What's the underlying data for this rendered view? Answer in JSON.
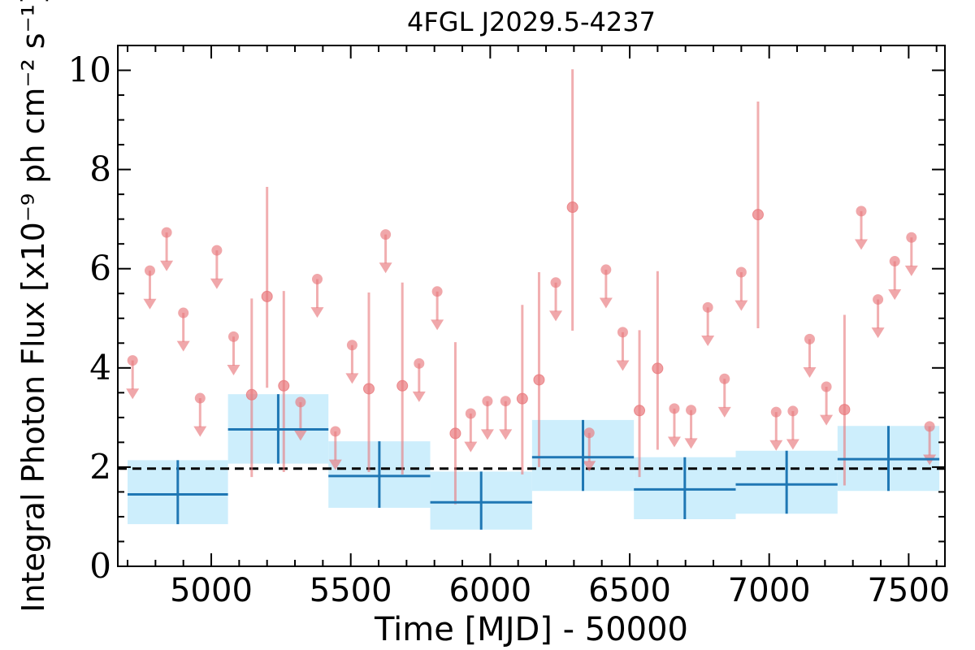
{
  "chart_data": {
    "type": "scatter",
    "title": "4FGL J2029.5-4237",
    "xlabel": "Time [MJD] - 50000",
    "ylabel": "Integral Photon Flux [x10⁻⁹ ph cm⁻² s⁻¹]",
    "xlim": [
      4665,
      7630
    ],
    "ylim": [
      0,
      10.5
    ],
    "x_ticks": [
      5000,
      5500,
      6000,
      6500,
      7000,
      7500
    ],
    "y_ticks": [
      0,
      2,
      4,
      6,
      8,
      10
    ],
    "x_minor_step": 100,
    "y_minor_step": 0.5,
    "mean_flux": 1.97,
    "colors": {
      "fine": "#e8787c",
      "coarse_line": "#1f77b4",
      "coarse_box": "#cdeefc",
      "mean": "#000000"
    },
    "fine_bins": {
      "detections": [
        {
          "x": 5145,
          "y": 3.46,
          "lo": 1.8,
          "hi": 5.4
        },
        {
          "x": 5200,
          "y": 5.44,
          "lo": 3.6,
          "hi": 7.65
        },
        {
          "x": 5260,
          "y": 3.64,
          "lo": 1.9,
          "hi": 5.55
        },
        {
          "x": 5565,
          "y": 3.58,
          "lo": 1.9,
          "hi": 5.52
        },
        {
          "x": 5685,
          "y": 3.64,
          "lo": 1.85,
          "hi": 5.72
        },
        {
          "x": 5875,
          "y": 2.68,
          "lo": 1.25,
          "hi": 4.52
        },
        {
          "x": 6115,
          "y": 3.38,
          "lo": 1.85,
          "hi": 5.27
        },
        {
          "x": 6175,
          "y": 3.76,
          "lo": 2.0,
          "hi": 5.93
        },
        {
          "x": 6295,
          "y": 7.24,
          "lo": 4.75,
          "hi": 10.02
        },
        {
          "x": 6535,
          "y": 3.14,
          "lo": 1.8,
          "hi": 4.76
        },
        {
          "x": 6600,
          "y": 3.99,
          "lo": 2.35,
          "hi": 5.95
        },
        {
          "x": 6960,
          "y": 7.09,
          "lo": 4.8,
          "hi": 9.37
        },
        {
          "x": 7270,
          "y": 3.16,
          "lo": 1.63,
          "hi": 5.07
        }
      ],
      "upper_limits": [
        {
          "x": 4718,
          "y": 4.15
        },
        {
          "x": 4780,
          "y": 5.96
        },
        {
          "x": 4840,
          "y": 6.73
        },
        {
          "x": 4900,
          "y": 5.11
        },
        {
          "x": 4960,
          "y": 3.39
        },
        {
          "x": 5020,
          "y": 6.37
        },
        {
          "x": 5080,
          "y": 4.63
        },
        {
          "x": 5320,
          "y": 3.31
        },
        {
          "x": 5380,
          "y": 5.79
        },
        {
          "x": 5445,
          "y": 2.72
        },
        {
          "x": 5505,
          "y": 4.46
        },
        {
          "x": 5625,
          "y": 6.69
        },
        {
          "x": 5745,
          "y": 4.09
        },
        {
          "x": 5810,
          "y": 5.54
        },
        {
          "x": 5930,
          "y": 3.08
        },
        {
          "x": 5990,
          "y": 3.33
        },
        {
          "x": 6055,
          "y": 3.33
        },
        {
          "x": 6235,
          "y": 5.72
        },
        {
          "x": 6355,
          "y": 2.69
        },
        {
          "x": 6415,
          "y": 5.98
        },
        {
          "x": 6475,
          "y": 4.72
        },
        {
          "x": 6660,
          "y": 3.18
        },
        {
          "x": 6720,
          "y": 3.15
        },
        {
          "x": 6780,
          "y": 5.22
        },
        {
          "x": 6840,
          "y": 3.78
        },
        {
          "x": 6900,
          "y": 5.93
        },
        {
          "x": 7025,
          "y": 3.11
        },
        {
          "x": 7085,
          "y": 3.13
        },
        {
          "x": 7145,
          "y": 4.58
        },
        {
          "x": 7205,
          "y": 3.62
        },
        {
          "x": 7330,
          "y": 7.16
        },
        {
          "x": 7390,
          "y": 5.38
        },
        {
          "x": 7450,
          "y": 6.15
        },
        {
          "x": 7510,
          "y": 6.63
        },
        {
          "x": 7575,
          "y": 2.82
        }
      ]
    },
    "coarse_bins": [
      {
        "x0": 4700,
        "x1": 5060,
        "y": 1.45,
        "lo": 0.85,
        "hi": 2.14
      },
      {
        "x0": 5060,
        "x1": 5420,
        "y": 2.76,
        "lo": 2.07,
        "hi": 3.47
      },
      {
        "x0": 5420,
        "x1": 5785,
        "y": 1.82,
        "lo": 1.18,
        "hi": 2.52
      },
      {
        "x0": 5785,
        "x1": 6150,
        "y": 1.29,
        "lo": 0.74,
        "hi": 1.91
      },
      {
        "x0": 6150,
        "x1": 6515,
        "y": 2.2,
        "lo": 1.52,
        "hi": 2.95
      },
      {
        "x0": 6515,
        "x1": 6880,
        "y": 1.55,
        "lo": 0.95,
        "hi": 2.2
      },
      {
        "x0": 6880,
        "x1": 7245,
        "y": 1.65,
        "lo": 1.06,
        "hi": 2.33
      },
      {
        "x0": 7245,
        "x1": 7610,
        "y": 2.16,
        "lo": 1.52,
        "hi": 2.83
      }
    ]
  }
}
